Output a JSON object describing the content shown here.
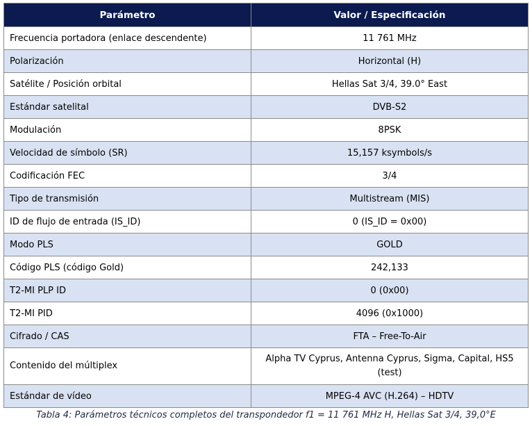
{
  "table": {
    "headers": [
      "Parámetro",
      "Valor / Especificación"
    ],
    "rows": [
      [
        "Frecuencia portadora (enlace descendente)",
        "11 761 MHz"
      ],
      [
        "Polarización",
        "Horizontal (H)"
      ],
      [
        "Satélite / Posición orbital",
        "Hellas Sat 3/4, 39.0° East"
      ],
      [
        "Estándar satelital",
        "DVB-S2"
      ],
      [
        "Modulación",
        "8PSK"
      ],
      [
        "Velocidad de símbolo (SR)",
        "15,157 ksymbols/s"
      ],
      [
        "Codificación FEC",
        "3/4"
      ],
      [
        "Tipo de transmisión",
        "Multistream (MIS)"
      ],
      [
        "ID de flujo de entrada (IS_ID)",
        "0 (IS_ID = 0x00)"
      ],
      [
        "Modo PLS",
        "GOLD"
      ],
      [
        "Código PLS (código Gold)",
        "242,133"
      ],
      [
        "T2-MI PLP ID",
        "0 (0x00)"
      ],
      [
        "T2-MI PID",
        "4096 (0x1000)"
      ],
      [
        "Cifrado / CAS",
        "FTA – Free-To-Air"
      ],
      [
        "Contenido del múltiplex",
        "Alpha TV Cyprus, Antenna Cyprus, Sigma, Capital, HS5 (test)"
      ],
      [
        "Estándar de vídeo",
        "MPEG-4 AVC (H.264) – HDTV"
      ]
    ]
  },
  "caption": "Tabla 4: Parámetros técnicos completos del transpondedor f1 = 11 761 MHz H, Hellas Sat 3/4, 39,0°E"
}
